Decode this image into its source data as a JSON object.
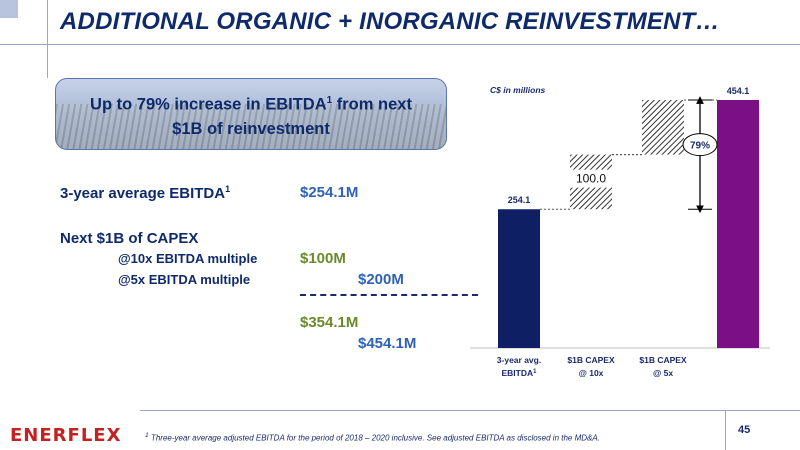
{
  "slide": {
    "title": "ADDITIONAL ORGANIC + INORGANIC REINVESTMENT…",
    "callout": {
      "line1": "Up to 79% increase in EBITDA",
      "sup": "1",
      "line1_tail": " from next",
      "line2": "$1B of reinvestment"
    },
    "rows": {
      "avg_label": "3-year average EBITDA",
      "avg_sup": "1",
      "avg_value": "$254.1M",
      "capex_label": "Next $1B of CAPEX",
      "m10_label": "@10x EBITDA multiple",
      "m10_value": "$100M",
      "m5_label": "@5x EBITDA multiple",
      "m5_value": "$200M",
      "total10": "$354.1M",
      "total5": "$454.1M"
    },
    "footer": {
      "logo": "ENERFLEX",
      "footnote_sup": "1",
      "footnote": "Three-year average adjusted EBITDA for the period of 2018 – 2020 inclusive. See adjusted EBITDA as disclosed in the MD&A.",
      "page": "45"
    },
    "colors": {
      "navy": "#0f2a6a",
      "green": "#6a8a2a",
      "blue": "#2e62b5",
      "purple": "#7a0f86",
      "base_bar": "#0f1f63"
    }
  },
  "chart_data": {
    "type": "bar",
    "subtype": "waterfall",
    "unit_label": "C$ in millions",
    "categories": [
      "3-year avg. EBITDA",
      "$1B CAPEX @ 10x",
      "$1B CAPEX @ 5x",
      "Total"
    ],
    "category_lines": [
      [
        "3-year avg.",
        "EBITDA"
      ],
      [
        "$1B CAPEX",
        "@ 10x"
      ],
      [
        "$1B CAPEX",
        "@ 5x"
      ],
      []
    ],
    "category_sup": [
      "1",
      "",
      "",
      ""
    ],
    "values": [
      254.1,
      100.0,
      100.0,
      454.1
    ],
    "kinds": [
      "base",
      "delta",
      "delta",
      "total"
    ],
    "data_labels": [
      "254.1",
      "100.0",
      "100.0",
      "454.1"
    ],
    "increase_label": "79%"
  }
}
